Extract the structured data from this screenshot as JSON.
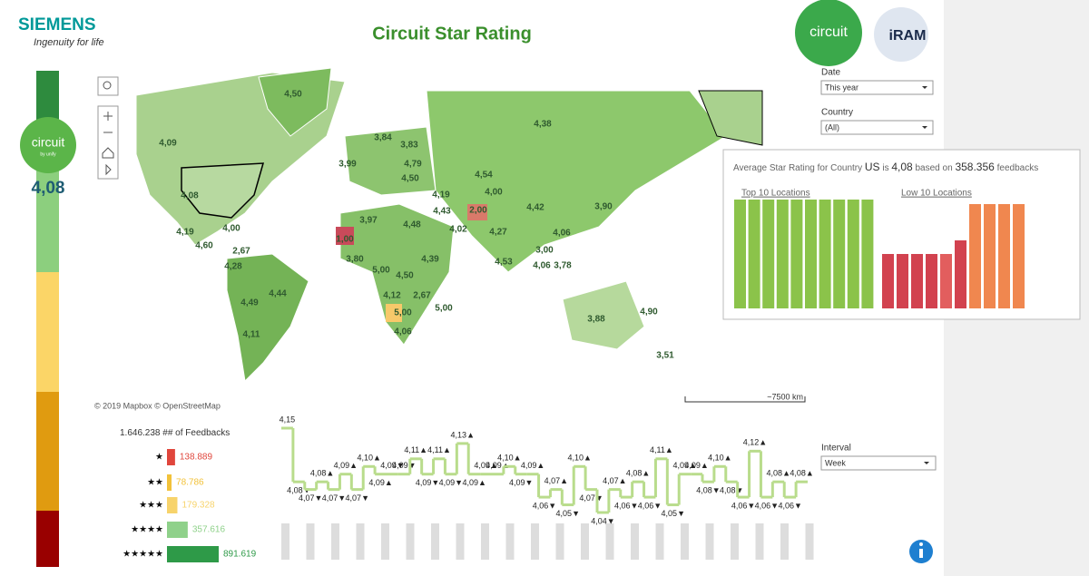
{
  "header": {
    "brand": "SIEMENS",
    "tagline": "Ingenuity for life",
    "title": "Circuit Star Rating",
    "logo": "circuit",
    "partner_logo": "iRAM"
  },
  "sidebar": {
    "logo": "circuit",
    "logo_sub": "by unify",
    "rating": "4,08"
  },
  "map": {
    "labels": [
      "4,50",
      "4,09",
      "4,38",
      "3,84",
      "3,83",
      "3,99",
      "4,79",
      "4,54",
      "4,08",
      "4,50",
      "4,19",
      "4,00",
      "4,43",
      "2,00",
      "4,42",
      "3,90",
      "3,97",
      "4,48",
      "4,02",
      "4,27",
      "4,19",
      "4,00",
      "4,60",
      "2,67",
      "1,00",
      "4,06",
      "3,00",
      "4,53",
      "3,78",
      "4,06",
      "3,80",
      "4,39",
      "4,28",
      "5,00",
      "4,50",
      "4,44",
      "4,12",
      "2,67",
      "4,49",
      "5,00",
      "5,00",
      "3,88",
      "4,90",
      "4,11",
      "4,06",
      "3,51"
    ],
    "attribution": "© 2019 Mapbox © OpenStreetMap",
    "scale": "~7500 km"
  },
  "filters": {
    "date_label": "Date",
    "date_value": "This year",
    "country_label": "Country",
    "country_value": "(All)",
    "interval_label": "Interval",
    "interval_value": "Week"
  },
  "tooltip": {
    "prefix": "Average Star Rating for Country",
    "country": "US",
    "is": "is",
    "rating": "4,08",
    "based_on": "based on",
    "count": "358.356",
    "suffix": "feedbacks",
    "top_link": "Top 10 Locations",
    "low_link": "Low 10 Locations"
  },
  "feedback": {
    "total": "1.646.238",
    "total_label": "## of Feedbacks",
    "rows": [
      {
        "stars": "★",
        "value": 138889,
        "label": "138.889",
        "color": "#e0463c"
      },
      {
        "stars": "★★",
        "value": 78786,
        "label": "78.786",
        "color": "#f2c23a"
      },
      {
        "stars": "★★★",
        "value": 179328,
        "label": "179.328",
        "color": "#f7d36b"
      },
      {
        "stars": "★★★★",
        "value": 357616,
        "label": "357.616",
        "color": "#8fd18a"
      },
      {
        "stars": "★★★★★",
        "value": 891619,
        "label": "891.619",
        "color": "#2e9a48"
      }
    ]
  },
  "chart_data": {
    "type": "line",
    "color": "#b9dc8c",
    "values": [
      4.15,
      4.08,
      4.07,
      4.08,
      4.07,
      4.09,
      4.07,
      4.1,
      4.09,
      4.09,
      4.09,
      4.11,
      4.09,
      4.11,
      4.09,
      4.13,
      4.09,
      4.09,
      4.09,
      4.1,
      4.09,
      4.09,
      4.06,
      4.07,
      4.05,
      4.1,
      4.07,
      4.04,
      4.07,
      4.06,
      4.08,
      4.06,
      4.11,
      4.05,
      4.09,
      4.09,
      4.08,
      4.1,
      4.08,
      4.06,
      4.12,
      4.06,
      4.08,
      4.06,
      4.08
    ],
    "value_labels": [
      "4,15",
      "4,08▼",
      "4,07▼",
      "4,08▲",
      "4,07▼",
      "4,09▲",
      "4,07▼",
      "4,10▲",
      "4,09▲",
      "4,09▼",
      "4,09▼",
      "4,11▲",
      "4,09▼",
      "4,11▲",
      "4,09▼",
      "4,13▲",
      "4,09▲",
      "4,09▲",
      "4,09▲",
      "4,10▲",
      "4,09▼",
      "4,09▲",
      "4,06▼",
      "4,07▲",
      "4,05▼",
      "4,10▲",
      "4,07▼",
      "4,04▼",
      "4,07▲",
      "4,06▼",
      "4,08▲",
      "4,06▼",
      "4,11▲",
      "4,05▼",
      "4,09▲",
      "4,09▲",
      "4,08▼",
      "4,10▲",
      "4,08▼",
      "4,06▼",
      "4,12▲",
      "4,06▼",
      "4,08▲",
      "4,06▼",
      "4,08▲"
    ]
  }
}
